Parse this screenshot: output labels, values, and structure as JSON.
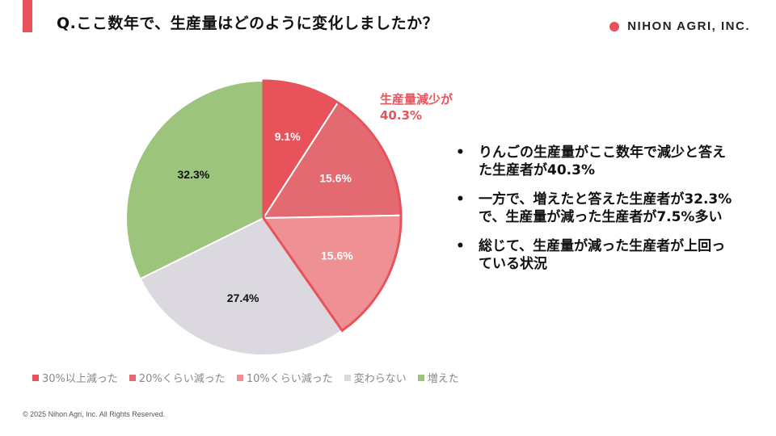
{
  "title": "Q.ここ数年で、生産量はどのように変化しましたか？",
  "brand": {
    "name": "NIHON AGRI, INC."
  },
  "chart_data": {
    "type": "pie",
    "slices": [
      {
        "name": "30%以上減った",
        "value": 9.1,
        "label": "9.1%",
        "color": "#e8525a"
      },
      {
        "name": "20%くらい減った",
        "value": 15.6,
        "label": "15.6%",
        "color": "#e36a70"
      },
      {
        "name": "10%くらい減った",
        "value": 15.6,
        "label": "15.6%",
        "color": "#ef9194"
      },
      {
        "name": "変わらない",
        "value": 27.4,
        "label": "27.4%",
        "color": "#dcd8df"
      },
      {
        "name": "増えた",
        "value": 32.3,
        "label": "32.3%",
        "color": "#9cc47c"
      }
    ],
    "highlight": {
      "label": "生産量減少が",
      "value": "40.3%",
      "color": "#e8525a"
    }
  },
  "bullets": [
    "りんごの生産量がここ数年で減少と答えた生産者が40.3%",
    "一方で、増えたと答えた生産者が32.3%で、生産量が減った生産者が7.5%多い",
    "総じて、生産量が減った生産者が上回っている状況"
  ],
  "bullet_symbol": "•",
  "copyright": "© 2025 Nihon Agri, Inc. All Rights Reserved."
}
